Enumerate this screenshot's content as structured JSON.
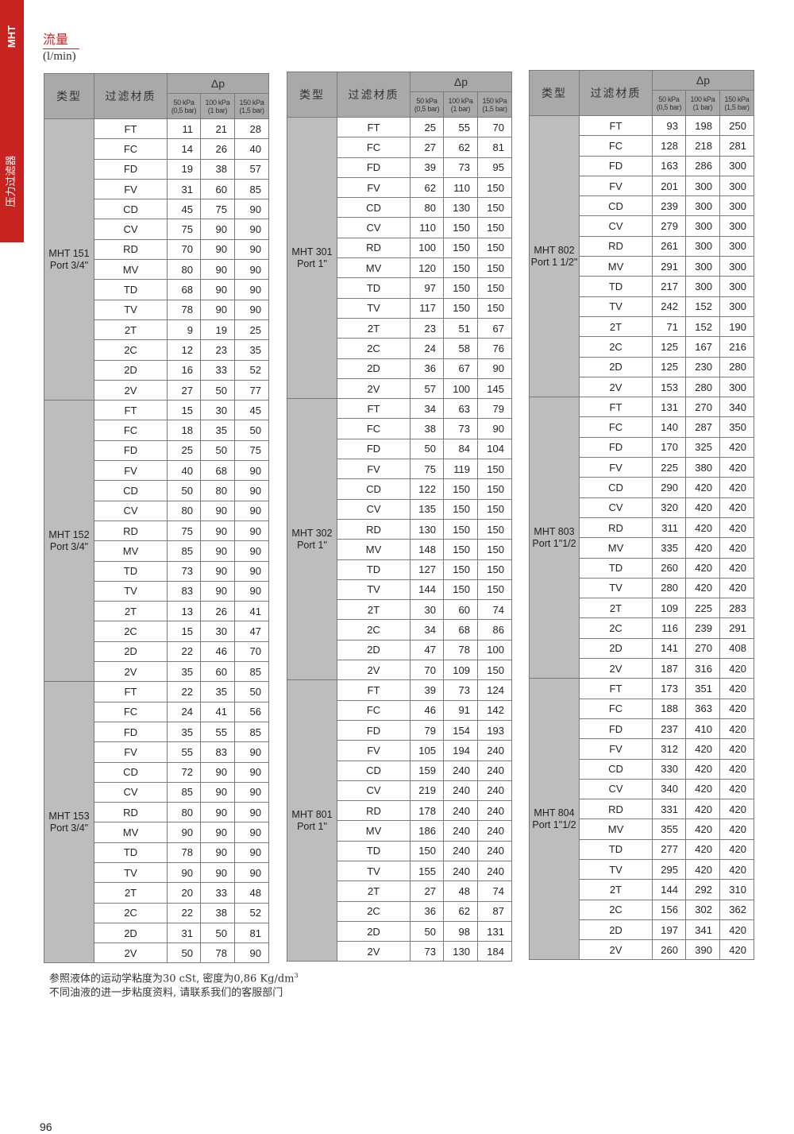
{
  "sidebar": {
    "brand": "MHT",
    "category": "压力过滤器",
    "color": "#c8231e"
  },
  "heading": {
    "title": "流量",
    "unit": "(l/min)"
  },
  "table_header": {
    "type": "类型",
    "material": "过滤材质",
    "delta_p": "Δp",
    "pressures": [
      {
        "kpa": "50 kPa",
        "bar": "(0,5 bar)"
      },
      {
        "kpa": "100 kPa",
        "bar": "(1 bar)"
      },
      {
        "kpa": "150 kPa",
        "bar": "(1,5 bar)"
      }
    ]
  },
  "materials": [
    "FT",
    "FC",
    "FD",
    "FV",
    "CD",
    "CV",
    "RD",
    "MV",
    "TD",
    "TV",
    "2T",
    "2C",
    "2D",
    "2V"
  ],
  "tables": [
    {
      "models": [
        {
          "name": "MHT 151",
          "port": "Port 3/4\"",
          "rows": [
            [
              11,
              21,
              28
            ],
            [
              14,
              26,
              40
            ],
            [
              19,
              38,
              57
            ],
            [
              31,
              60,
              85
            ],
            [
              45,
              75,
              90
            ],
            [
              75,
              90,
              90
            ],
            [
              70,
              90,
              90
            ],
            [
              80,
              90,
              90
            ],
            [
              68,
              90,
              90
            ],
            [
              78,
              90,
              90
            ],
            [
              9,
              19,
              25
            ],
            [
              12,
              23,
              35
            ],
            [
              16,
              33,
              52
            ],
            [
              27,
              50,
              77
            ]
          ]
        },
        {
          "name": "MHT 152",
          "port": "Port 3/4\"",
          "rows": [
            [
              15,
              30,
              45
            ],
            [
              18,
              35,
              50
            ],
            [
              25,
              50,
              75
            ],
            [
              40,
              68,
              90
            ],
            [
              50,
              80,
              90
            ],
            [
              80,
              90,
              90
            ],
            [
              75,
              90,
              90
            ],
            [
              85,
              90,
              90
            ],
            [
              73,
              90,
              90
            ],
            [
              83,
              90,
              90
            ],
            [
              13,
              26,
              41
            ],
            [
              15,
              30,
              47
            ],
            [
              22,
              46,
              70
            ],
            [
              35,
              60,
              85
            ]
          ]
        },
        {
          "name": "MHT 153",
          "port": "Port 3/4\"",
          "rows": [
            [
              22,
              35,
              50
            ],
            [
              24,
              41,
              56
            ],
            [
              35,
              55,
              85
            ],
            [
              55,
              83,
              90
            ],
            [
              72,
              90,
              90
            ],
            [
              85,
              90,
              90
            ],
            [
              80,
              90,
              90
            ],
            [
              90,
              90,
              90
            ],
            [
              78,
              90,
              90
            ],
            [
              90,
              90,
              90
            ],
            [
              20,
              33,
              48
            ],
            [
              22,
              38,
              52
            ],
            [
              31,
              50,
              81
            ],
            [
              50,
              78,
              90
            ]
          ]
        }
      ]
    },
    {
      "models": [
        {
          "name": "MHT 301",
          "port": "Port 1\"",
          "rows": [
            [
              25,
              55,
              70
            ],
            [
              27,
              62,
              81
            ],
            [
              39,
              73,
              95
            ],
            [
              62,
              110,
              150
            ],
            [
              80,
              130,
              150
            ],
            [
              110,
              150,
              150
            ],
            [
              100,
              150,
              150
            ],
            [
              120,
              150,
              150
            ],
            [
              97,
              150,
              150
            ],
            [
              117,
              150,
              150
            ],
            [
              23,
              51,
              67
            ],
            [
              24,
              58,
              76
            ],
            [
              36,
              67,
              90
            ],
            [
              57,
              100,
              145
            ]
          ]
        },
        {
          "name": "MHT 302",
          "port": "Port 1\"",
          "rows": [
            [
              34,
              63,
              79
            ],
            [
              38,
              73,
              90
            ],
            [
              50,
              84,
              104
            ],
            [
              75,
              119,
              150
            ],
            [
              122,
              150,
              150
            ],
            [
              135,
              150,
              150
            ],
            [
              130,
              150,
              150
            ],
            [
              148,
              150,
              150
            ],
            [
              127,
              150,
              150
            ],
            [
              144,
              150,
              150
            ],
            [
              30,
              60,
              74
            ],
            [
              34,
              68,
              86
            ],
            [
              47,
              78,
              100
            ],
            [
              70,
              109,
              150
            ]
          ]
        },
        {
          "name": "MHT 801",
          "port": "Port 1\"",
          "rows": [
            [
              39,
              73,
              124
            ],
            [
              46,
              91,
              142
            ],
            [
              79,
              154,
              193
            ],
            [
              105,
              194,
              240
            ],
            [
              159,
              240,
              240
            ],
            [
              219,
              240,
              240
            ],
            [
              178,
              240,
              240
            ],
            [
              186,
              240,
              240
            ],
            [
              150,
              240,
              240
            ],
            [
              155,
              240,
              240
            ],
            [
              27,
              48,
              74
            ],
            [
              36,
              62,
              87
            ],
            [
              50,
              98,
              131
            ],
            [
              73,
              130,
              184
            ]
          ]
        }
      ]
    },
    {
      "models": [
        {
          "name": "MHT 802",
          "port": "Port 1 1/2\"",
          "rows": [
            [
              93,
              198,
              250
            ],
            [
              128,
              218,
              281
            ],
            [
              163,
              286,
              300
            ],
            [
              201,
              300,
              300
            ],
            [
              239,
              300,
              300
            ],
            [
              279,
              300,
              300
            ],
            [
              261,
              300,
              300
            ],
            [
              291,
              300,
              300
            ],
            [
              217,
              300,
              300
            ],
            [
              242,
              152,
              300
            ],
            [
              71,
              152,
              190
            ],
            [
              125,
              167,
              216
            ],
            [
              125,
              230,
              280
            ],
            [
              153,
              280,
              300
            ]
          ]
        },
        {
          "name": "MHT 803",
          "port": "Port 1\"1/2",
          "rows": [
            [
              131,
              270,
              340
            ],
            [
              140,
              287,
              350
            ],
            [
              170,
              325,
              420
            ],
            [
              225,
              380,
              420
            ],
            [
              290,
              420,
              420
            ],
            [
              320,
              420,
              420
            ],
            [
              311,
              420,
              420
            ],
            [
              335,
              420,
              420
            ],
            [
              260,
              420,
              420
            ],
            [
              280,
              420,
              420
            ],
            [
              109,
              225,
              283
            ],
            [
              116,
              239,
              291
            ],
            [
              141,
              270,
              408
            ],
            [
              187,
              316,
              420
            ]
          ]
        },
        {
          "name": "MHT 804",
          "port": "Port 1\"1/2",
          "rows": [
            [
              173,
              351,
              420
            ],
            [
              188,
              363,
              420
            ],
            [
              237,
              410,
              420
            ],
            [
              312,
              420,
              420
            ],
            [
              330,
              420,
              420
            ],
            [
              340,
              420,
              420
            ],
            [
              331,
              420,
              420
            ],
            [
              355,
              420,
              420
            ],
            [
              277,
              420,
              420
            ],
            [
              295,
              420,
              420
            ],
            [
              144,
              292,
              310
            ],
            [
              156,
              302,
              362
            ],
            [
              197,
              341,
              420
            ],
            [
              260,
              390,
              420
            ]
          ]
        }
      ]
    }
  ],
  "notes": {
    "line1": "参照液体的运动学粘度为30 cSt, 密度为0,86 Kg/dm",
    "line1_sup": "3",
    "line2": "不同油液的进一步粘度资料, 请联系我们的客服部门"
  },
  "page_number": "96"
}
